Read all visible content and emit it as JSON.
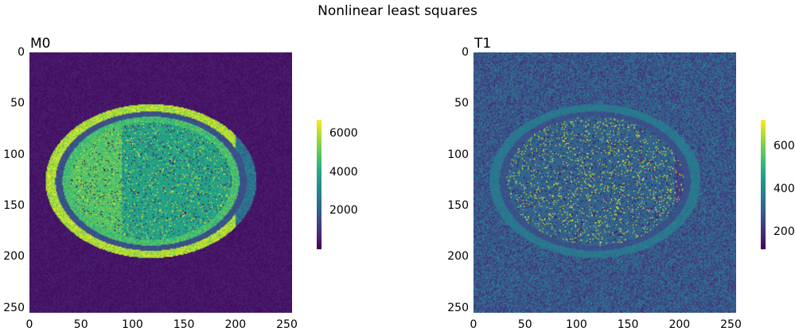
{
  "chart_data": [
    {
      "type": "heatmap",
      "suptitle": "Nonlinear least squares",
      "title": "M0",
      "colormap": "viridis",
      "x_ticks": [
        0,
        50,
        100,
        150,
        200,
        250
      ],
      "y_ticks": [
        0,
        50,
        100,
        150,
        200,
        250
      ],
      "xlim": [
        0,
        255
      ],
      "ylim": [
        255,
        0
      ],
      "colorbar": {
        "ticks": [
          2000,
          4000,
          6000
        ],
        "range": [
          0,
          6700
        ]
      }
    },
    {
      "type": "heatmap",
      "title": "T1",
      "colormap": "viridis",
      "x_ticks": [
        0,
        50,
        100,
        150,
        200,
        250
      ],
      "y_ticks": [
        0,
        50,
        100,
        150,
        200,
        250
      ],
      "xlim": [
        0,
        255
      ],
      "ylim": [
        255,
        0
      ],
      "colorbar": {
        "ticks": [
          200,
          400,
          600
        ],
        "range": [
          120,
          720
        ]
      }
    }
  ],
  "colors": {
    "viridis_low": "#440154",
    "viridis_mid": "#21918c",
    "viridis_high": "#fde725"
  }
}
